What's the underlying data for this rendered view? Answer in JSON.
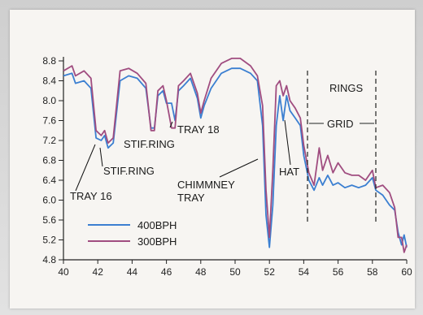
{
  "chart_data": {
    "type": "line",
    "title": "",
    "xlabel": "",
    "ylabel": "",
    "xlim": [
      40,
      60
    ],
    "ylim": [
      4.8,
      8.8
    ],
    "x_ticks": [
      "40",
      "42",
      "44",
      "46",
      "48",
      "50",
      "52",
      "54",
      "56",
      "58",
      "60"
    ],
    "y_ticks": [
      "8.8",
      "8.4",
      "8.0",
      "7.6",
      "7.2",
      "6.8",
      "6.4",
      "6.0",
      "5.6",
      "5.2",
      "4.8"
    ],
    "grid": false,
    "legend_position": "bottom-left",
    "series": [
      {
        "name": "400BPH",
        "color": "#3b7fd1",
        "points": [
          [
            40,
            8.5
          ],
          [
            40.5,
            8.55
          ],
          [
            40.7,
            8.35
          ],
          [
            41.2,
            8.4
          ],
          [
            41.6,
            8.25
          ],
          [
            41.9,
            7.25
          ],
          [
            42.2,
            7.2
          ],
          [
            42.4,
            7.3
          ],
          [
            42.6,
            7.05
          ],
          [
            42.9,
            7.15
          ],
          [
            43.3,
            8.4
          ],
          [
            43.8,
            8.5
          ],
          [
            44.3,
            8.45
          ],
          [
            44.8,
            8.25
          ],
          [
            45.1,
            7.45
          ],
          [
            45.3,
            7.45
          ],
          [
            45.5,
            8.1
          ],
          [
            45.8,
            8.2
          ],
          [
            46.0,
            7.95
          ],
          [
            46.3,
            7.95
          ],
          [
            46.5,
            7.6
          ],
          [
            46.7,
            8.2
          ],
          [
            47.0,
            8.3
          ],
          [
            47.4,
            8.45
          ],
          [
            47.8,
            8.05
          ],
          [
            48.0,
            7.65
          ],
          [
            48.2,
            7.9
          ],
          [
            48.6,
            8.25
          ],
          [
            49.2,
            8.55
          ],
          [
            49.8,
            8.65
          ],
          [
            50.3,
            8.65
          ],
          [
            50.9,
            8.55
          ],
          [
            51.3,
            8.4
          ],
          [
            51.6,
            7.5
          ],
          [
            51.8,
            5.7
          ],
          [
            52.0,
            5.05
          ],
          [
            52.2,
            5.9
          ],
          [
            52.4,
            7.5
          ],
          [
            52.6,
            8.1
          ],
          [
            52.8,
            7.6
          ],
          [
            53.0,
            8.1
          ],
          [
            53.2,
            7.8
          ],
          [
            53.5,
            7.65
          ],
          [
            53.8,
            7.5
          ],
          [
            54.0,
            6.9
          ],
          [
            54.3,
            6.4
          ],
          [
            54.6,
            6.2
          ],
          [
            54.9,
            6.45
          ],
          [
            55.1,
            6.3
          ],
          [
            55.4,
            6.5
          ],
          [
            55.7,
            6.3
          ],
          [
            56.0,
            6.35
          ],
          [
            56.4,
            6.25
          ],
          [
            56.8,
            6.3
          ],
          [
            57.2,
            6.25
          ],
          [
            57.6,
            6.3
          ],
          [
            58.0,
            6.45
          ],
          [
            58.2,
            6.2
          ],
          [
            58.6,
            6.1
          ],
          [
            59.0,
            5.9
          ],
          [
            59.3,
            5.8
          ],
          [
            59.5,
            5.35
          ],
          [
            59.7,
            5.1
          ],
          [
            59.85,
            5.3
          ],
          [
            60,
            5.05
          ]
        ]
      },
      {
        "name": "300BPH",
        "color": "#a04d80",
        "points": [
          [
            40,
            8.6
          ],
          [
            40.5,
            8.7
          ],
          [
            40.7,
            8.5
          ],
          [
            41.2,
            8.6
          ],
          [
            41.6,
            8.45
          ],
          [
            41.9,
            7.4
          ],
          [
            42.2,
            7.3
          ],
          [
            42.4,
            7.4
          ],
          [
            42.6,
            7.15
          ],
          [
            42.9,
            7.25
          ],
          [
            43.3,
            8.6
          ],
          [
            43.8,
            8.65
          ],
          [
            44.3,
            8.55
          ],
          [
            44.8,
            8.35
          ],
          [
            45.1,
            7.4
          ],
          [
            45.3,
            7.4
          ],
          [
            45.5,
            8.2
          ],
          [
            45.8,
            8.3
          ],
          [
            46.0,
            8.0
          ],
          [
            46.3,
            7.45
          ],
          [
            46.5,
            7.45
          ],
          [
            46.7,
            8.3
          ],
          [
            47.0,
            8.4
          ],
          [
            47.4,
            8.55
          ],
          [
            47.8,
            8.15
          ],
          [
            48.0,
            7.75
          ],
          [
            48.2,
            8.0
          ],
          [
            48.6,
            8.45
          ],
          [
            49.2,
            8.75
          ],
          [
            49.8,
            8.85
          ],
          [
            50.3,
            8.85
          ],
          [
            50.9,
            8.7
          ],
          [
            51.3,
            8.5
          ],
          [
            51.6,
            7.9
          ],
          [
            51.8,
            6.2
          ],
          [
            52.0,
            5.25
          ],
          [
            52.2,
            6.6
          ],
          [
            52.4,
            8.3
          ],
          [
            52.6,
            8.4
          ],
          [
            52.8,
            8.1
          ],
          [
            53.0,
            8.3
          ],
          [
            53.2,
            8.0
          ],
          [
            53.5,
            7.85
          ],
          [
            53.8,
            7.65
          ],
          [
            54.0,
            7.1
          ],
          [
            54.3,
            6.55
          ],
          [
            54.6,
            6.3
          ],
          [
            54.9,
            7.05
          ],
          [
            55.1,
            6.6
          ],
          [
            55.4,
            6.9
          ],
          [
            55.7,
            6.55
          ],
          [
            56.0,
            6.75
          ],
          [
            56.4,
            6.55
          ],
          [
            56.8,
            6.5
          ],
          [
            57.2,
            6.5
          ],
          [
            57.6,
            6.4
          ],
          [
            58.0,
            6.6
          ],
          [
            58.2,
            6.25
          ],
          [
            58.6,
            6.3
          ],
          [
            59.0,
            6.15
          ],
          [
            59.3,
            5.85
          ],
          [
            59.5,
            5.25
          ],
          [
            59.7,
            5.25
          ],
          [
            59.85,
            4.95
          ],
          [
            60,
            5.1
          ]
        ]
      }
    ],
    "annotations": [
      {
        "id": "tray16",
        "text": "TRAY 16"
      },
      {
        "id": "stifring_lower",
        "text": "STIF.RING"
      },
      {
        "id": "stifring_upper",
        "text": "STIF.RING"
      },
      {
        "id": "tray18",
        "text": "TRAY 18"
      },
      {
        "id": "chimney1",
        "text": "CHIMMNEY"
      },
      {
        "id": "chimney2",
        "text": "TRAY"
      },
      {
        "id": "hat",
        "text": "HAT"
      },
      {
        "id": "grid",
        "text": "GRID"
      },
      {
        "id": "rings",
        "text": "RINGS"
      }
    ]
  }
}
